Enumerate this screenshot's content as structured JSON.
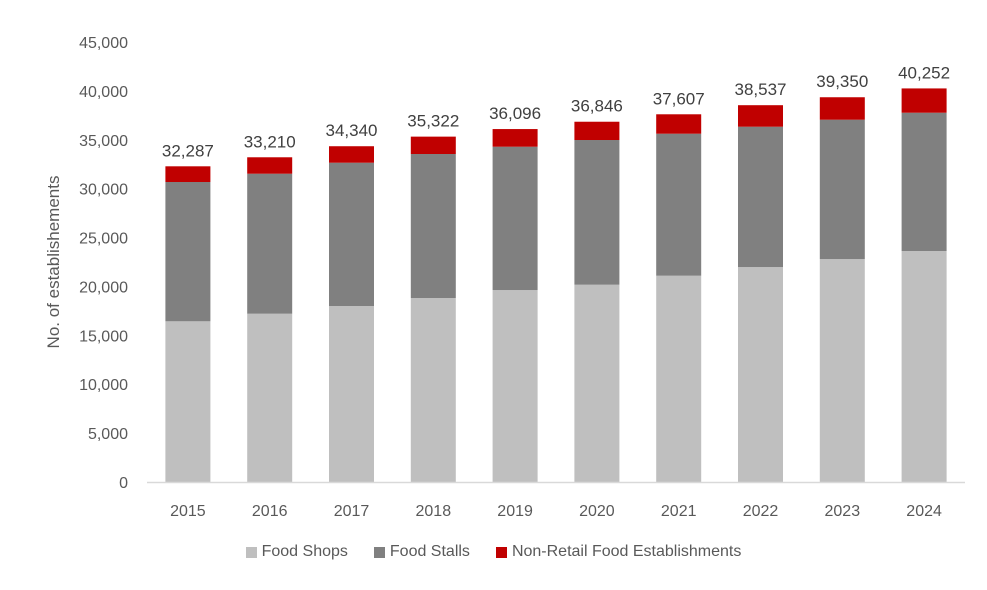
{
  "chart_data": {
    "type": "bar",
    "stacked": true,
    "title": "",
    "xlabel": "",
    "ylabel": "No. of establishements",
    "ylim": [
      0,
      45000
    ],
    "yticks": [
      0,
      5000,
      10000,
      15000,
      20000,
      25000,
      30000,
      35000,
      40000,
      45000
    ],
    "ytick_labels": [
      "0",
      "5,000",
      "10,000",
      "15,000",
      "20,000",
      "25,000",
      "30,000",
      "35,000",
      "40,000",
      "45,000"
    ],
    "grid": false,
    "legend_position": "bottom",
    "categories": [
      "2015",
      "2016",
      "2017",
      "2018",
      "2019",
      "2020",
      "2021",
      "2022",
      "2023",
      "2024"
    ],
    "series": [
      {
        "name": "Food Shops",
        "color": "#BFBFBF",
        "values": [
          16435,
          17212,
          18000,
          18818,
          19636,
          20178,
          21098,
          21988,
          22806,
          23624
        ]
      },
      {
        "name": "Food Stalls",
        "color": "#808080",
        "values": [
          14246,
          14318,
          14655,
          14727,
          14655,
          14798,
          14523,
          14348,
          14246,
          14144
        ]
      },
      {
        "name": "Non-Retail Food Establishments",
        "color": "#C00000",
        "values": [
          1606,
          1680,
          1685,
          1777,
          1805,
          1870,
          1986,
          2201,
          2298,
          2484
        ]
      }
    ],
    "totals": [
      32287,
      33210,
      34340,
      35322,
      36096,
      36846,
      37607,
      38537,
      39350,
      40252
    ],
    "total_labels": [
      "32,287",
      "33,210",
      "34,340",
      "35,322",
      "36,096",
      "36,846",
      "37,607",
      "38,537",
      "39,350",
      "40,252"
    ]
  }
}
